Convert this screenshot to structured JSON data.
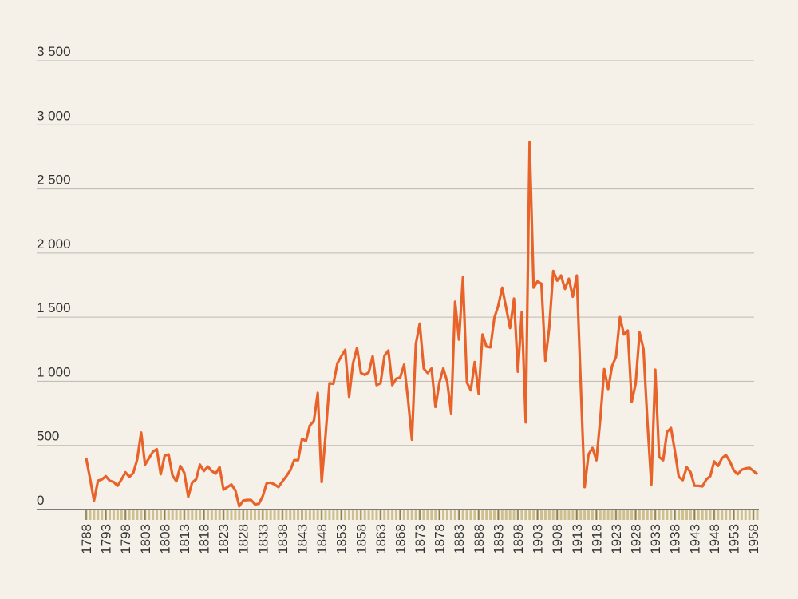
{
  "chart_data": {
    "type": "line",
    "x": [
      1788,
      1789,
      1790,
      1791,
      1792,
      1793,
      1794,
      1795,
      1796,
      1797,
      1798,
      1799,
      1800,
      1801,
      1802,
      1803,
      1804,
      1805,
      1806,
      1807,
      1808,
      1809,
      1810,
      1811,
      1812,
      1813,
      1814,
      1815,
      1816,
      1817,
      1818,
      1819,
      1820,
      1821,
      1822,
      1823,
      1824,
      1825,
      1826,
      1827,
      1828,
      1829,
      1830,
      1831,
      1832,
      1833,
      1834,
      1835,
      1836,
      1837,
      1838,
      1839,
      1840,
      1841,
      1842,
      1843,
      1844,
      1845,
      1846,
      1847,
      1848,
      1849,
      1850,
      1851,
      1852,
      1853,
      1854,
      1855,
      1856,
      1857,
      1858,
      1859,
      1860,
      1861,
      1862,
      1863,
      1864,
      1865,
      1866,
      1867,
      1868,
      1869,
      1870,
      1871,
      1872,
      1873,
      1874,
      1875,
      1876,
      1877,
      1878,
      1879,
      1880,
      1881,
      1882,
      1883,
      1884,
      1885,
      1886,
      1887,
      1888,
      1889,
      1890,
      1891,
      1892,
      1893,
      1894,
      1895,
      1896,
      1897,
      1898,
      1899,
      1900,
      1901,
      1902,
      1903,
      1904,
      1905,
      1906,
      1907,
      1908,
      1909,
      1910,
      1911,
      1912,
      1913,
      1914,
      1915,
      1916,
      1917,
      1918,
      1919,
      1920,
      1921,
      1922,
      1923,
      1924,
      1925,
      1926,
      1927,
      1928,
      1929,
      1930,
      1931,
      1932,
      1933,
      1934,
      1935,
      1936,
      1937,
      1938,
      1939,
      1940,
      1941,
      1942,
      1943,
      1944,
      1945,
      1946,
      1947,
      1948,
      1949,
      1950,
      1951,
      1952,
      1953,
      1954,
      1955,
      1956,
      1957,
      1958,
      1959
    ],
    "series": [
      {
        "color": "#e8632a",
        "values": [
          400,
          240,
          70,
          225,
          235,
          260,
          225,
          215,
          185,
          235,
          290,
          255,
          285,
          390,
          600,
          350,
          400,
          450,
          470,
          275,
          420,
          430,
          265,
          220,
          340,
          285,
          100,
          210,
          235,
          350,
          300,
          335,
          300,
          280,
          330,
          155,
          175,
          195,
          150,
          25,
          70,
          75,
          75,
          40,
          45,
          105,
          205,
          210,
          195,
          175,
          220,
          260,
          305,
          385,
          385,
          550,
          535,
          655,
          690,
          910,
          215,
          580,
          985,
          980,
          1140,
          1195,
          1245,
          880,
          1140,
          1260,
          1065,
          1050,
          1070,
          1195,
          970,
          985,
          1200,
          1240,
          970,
          1020,
          1030,
          1130,
          860,
          545,
          1290,
          1450,
          1100,
          1065,
          1100,
          800,
          990,
          1100,
          995,
          750,
          1620,
          1325,
          1810,
          990,
          930,
          1150,
          905,
          1365,
          1270,
          1265,
          1495,
          1590,
          1730,
          1575,
          1415,
          1645,
          1075,
          1540,
          680,
          2865,
          1730,
          1780,
          1760,
          1160,
          1420,
          1860,
          1785,
          1825,
          1720,
          1800,
          1660,
          1825,
          985,
          175,
          430,
          480,
          385,
          710,
          1095,
          940,
          1120,
          1190,
          1500,
          1365,
          1395,
          840,
          980,
          1380,
          1250,
          685,
          195,
          1090,
          410,
          385,
          605,
          635,
          455,
          255,
          230,
          330,
          290,
          185,
          185,
          180,
          235,
          260,
          375,
          340,
          400,
          425,
          375,
          305,
          275,
          310,
          320,
          325,
          300,
          275
        ]
      }
    ],
    "xlim": [
      1788,
      1959
    ],
    "xticks": [
      1788,
      1793,
      1798,
      1803,
      1808,
      1813,
      1818,
      1823,
      1828,
      1833,
      1838,
      1843,
      1848,
      1853,
      1858,
      1863,
      1868,
      1873,
      1878,
      1883,
      1888,
      1893,
      1898,
      1903,
      1908,
      1913,
      1918,
      1923,
      1928,
      1933,
      1938,
      1943,
      1948,
      1953,
      1958
    ],
    "ylim": [
      0,
      3500
    ],
    "yticks": [
      0,
      500,
      {
        "value": 1000,
        "label": "1 000"
      },
      {
        "value": 1500,
        "label": "1 500"
      },
      {
        "value": 2000,
        "label": "2 000"
      },
      {
        "value": 2500,
        "label": "2 500"
      },
      {
        "value": 3000,
        "label": "3 000"
      },
      {
        "value": 3500,
        "label": "3 500"
      }
    ],
    "grid": true
  }
}
